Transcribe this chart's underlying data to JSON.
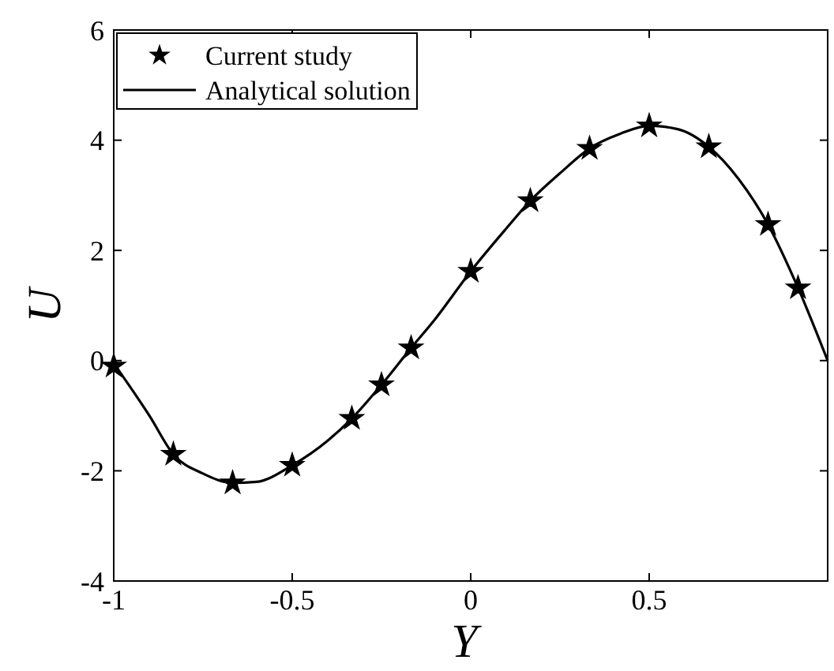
{
  "chart_data": {
    "type": "line",
    "xlabel": "Y",
    "ylabel": "U",
    "xlim": [
      -1,
      1
    ],
    "ylim": [
      -4,
      6
    ],
    "xticks": [
      -1,
      -0.5,
      0,
      0.5
    ],
    "yticks": [
      -4,
      -2,
      0,
      2,
      4,
      6
    ],
    "legend": "top left",
    "grid": false,
    "series": [
      {
        "name": "Current study",
        "type": "scatter",
        "marker": "star",
        "color": "#000000",
        "x": [
          -1,
          -0.833,
          -0.667,
          -0.5,
          -0.333,
          -0.25,
          -0.167,
          0,
          0.167,
          0.333,
          0.5,
          0.667,
          0.833,
          0.917
        ],
        "values": [
          -0.1,
          -1.7,
          -2.22,
          -1.9,
          -1.05,
          -0.44,
          0.23,
          1.62,
          2.9,
          3.85,
          4.26,
          3.88,
          2.47,
          1.32
        ]
      },
      {
        "name": "Analytical solution",
        "line_style": "solid",
        "color": "#000000",
        "x": [
          -1,
          -0.9,
          -0.833,
          -0.75,
          -0.667,
          -0.6,
          -0.5,
          -0.4,
          -0.333,
          -0.25,
          -0.167,
          -0.1,
          0,
          0.1,
          0.167,
          0.25,
          0.333,
          0.42,
          0.5,
          0.58,
          0.667,
          0.75,
          0.833,
          0.917,
          1
        ],
        "values": [
          -0.05,
          -1.0,
          -1.7,
          -2.05,
          -2.22,
          -2.2,
          -1.9,
          -1.45,
          -1.05,
          -0.44,
          0.23,
          0.75,
          1.62,
          2.4,
          2.9,
          3.4,
          3.85,
          4.12,
          4.26,
          4.2,
          3.88,
          3.3,
          2.47,
          1.32,
          0
        ]
      }
    ]
  }
}
